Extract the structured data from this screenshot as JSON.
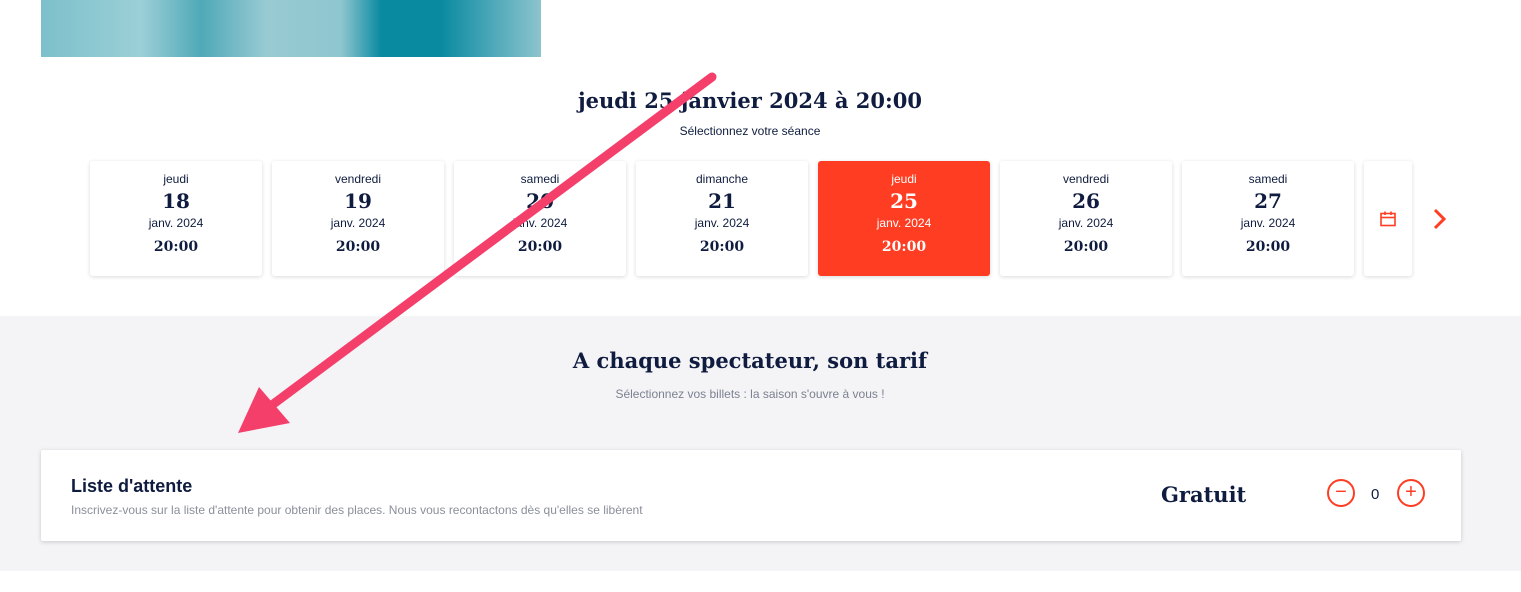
{
  "session": {
    "title": "jeudi 25 janvier 2024 à 20:00",
    "subtitle": "Sélectionnez votre séance"
  },
  "dates": [
    {
      "day": "jeudi",
      "num": "18",
      "month": "janv. 2024",
      "time": "20:00",
      "selected": false
    },
    {
      "day": "vendredi",
      "num": "19",
      "month": "janv. 2024",
      "time": "20:00",
      "selected": false
    },
    {
      "day": "samedi",
      "num": "20",
      "month": "janv. 2024",
      "time": "20:00",
      "selected": false
    },
    {
      "day": "dimanche",
      "num": "21",
      "month": "janv. 2024",
      "time": "20:00",
      "selected": false
    },
    {
      "day": "jeudi",
      "num": "25",
      "month": "janv. 2024",
      "time": "20:00",
      "selected": true
    },
    {
      "day": "vendredi",
      "num": "26",
      "month": "janv. 2024",
      "time": "20:00",
      "selected": false
    },
    {
      "day": "samedi",
      "num": "27",
      "month": "janv. 2024",
      "time": "20:00",
      "selected": false
    }
  ],
  "icons": {
    "calendar": "calendar-icon",
    "next": "chevron-right-icon"
  },
  "tarif": {
    "title": "A chaque spectateur, son tarif",
    "subtitle": "Sélectionnez vos billets : la saison s'ouvre à vous !"
  },
  "ticket": {
    "name": "Liste d'attente",
    "description": "Inscrivez-vous sur la liste d'attente pour obtenir des places. Nous vous recontactons dès qu'elles se libèrent",
    "price": "Gratuit",
    "quantity": "0",
    "minus": "−",
    "plus": "+"
  },
  "colors": {
    "accent": "#ff3d23",
    "annotation": "#f43f6b",
    "text": "#0f1c3f"
  }
}
